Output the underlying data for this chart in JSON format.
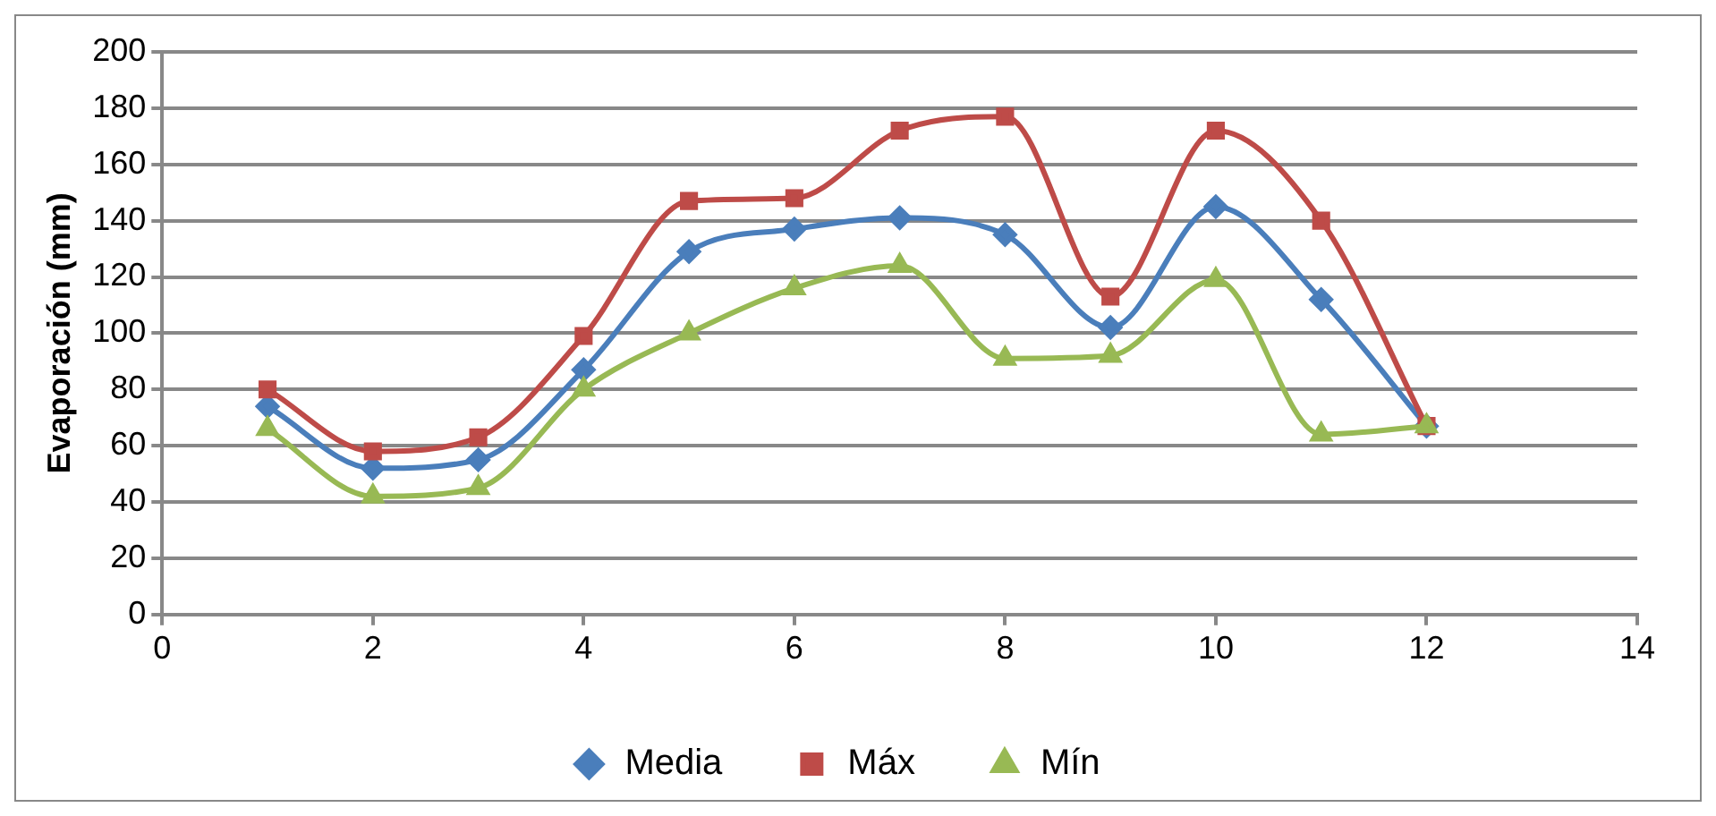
{
  "chart_data": {
    "type": "line",
    "ylabel": "Evaporación (mm)",
    "x": [
      1,
      2,
      3,
      4,
      5,
      6,
      7,
      8,
      9,
      10,
      11,
      12
    ],
    "series": [
      {
        "name": "Media",
        "color": "#4a7ebb",
        "marker": "diamond",
        "values": [
          74,
          52,
          55,
          87,
          129,
          137,
          141,
          135,
          102,
          145,
          112,
          67
        ]
      },
      {
        "name": "Máx",
        "color": "#be4b48",
        "marker": "square",
        "values": [
          80,
          58,
          63,
          99,
          147,
          148,
          172,
          177,
          113,
          172,
          140,
          67
        ]
      },
      {
        "name": "Mín",
        "color": "#98b954",
        "marker": "triangle",
        "values": [
          66,
          42,
          45,
          80,
          100,
          116,
          124,
          91,
          92,
          119,
          64,
          67
        ]
      }
    ],
    "xlim": [
      0,
      14
    ],
    "xticks": [
      0,
      2,
      4,
      6,
      8,
      10,
      12,
      14
    ],
    "ylim": [
      0,
      200
    ],
    "yticks": [
      0,
      20,
      40,
      60,
      80,
      100,
      120,
      140,
      160,
      180,
      200
    ],
    "grid": "y",
    "legend": "bottom",
    "line_style": "solid"
  }
}
